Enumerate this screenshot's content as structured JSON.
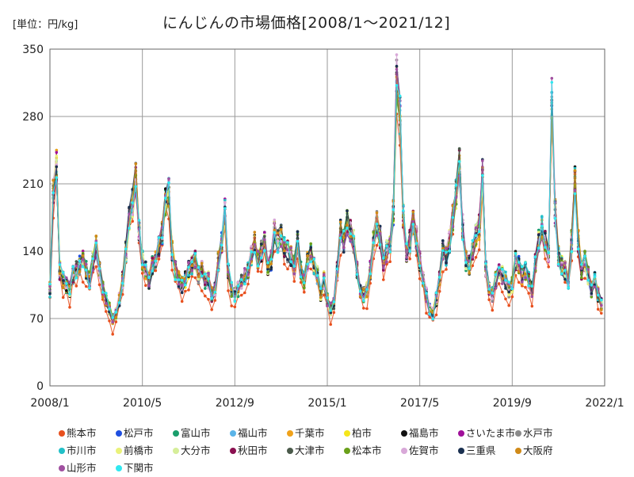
{
  "chart_data": {
    "type": "line",
    "title": "にんじんの市場価格[2008/1～2021/12]",
    "unit_label": "[単位：円/kg]",
    "ylim": [
      0,
      350
    ],
    "yticks": [
      0,
      70,
      140,
      210,
      280,
      350
    ],
    "xlim": [
      "2008/1",
      "2022/1"
    ],
    "xticks": [
      "2008/1",
      "2010/5",
      "2012/9",
      "2015/1",
      "2017/5",
      "2019/9",
      "2022/1"
    ],
    "grid": true,
    "legend_position": "bottom",
    "series": [
      {
        "name": "熊本市",
        "color": "#e8501e"
      },
      {
        "name": "松戸市",
        "color": "#1f4fe0"
      },
      {
        "name": "富山市",
        "color": "#1a9e6c"
      },
      {
        "name": "福山市",
        "color": "#5ab4e8"
      },
      {
        "name": "千葉市",
        "color": "#f0a21a"
      },
      {
        "name": "柏市",
        "color": "#f5e61a"
      },
      {
        "name": "福島市",
        "color": "#111111"
      },
      {
        "name": "さいたま市",
        "color": "#a0109a"
      },
      {
        "name": "水戸市",
        "color": "#8a8a8a"
      },
      {
        "name": "市川市",
        "color": "#22c0c8"
      },
      {
        "name": "前橋市",
        "color": "#eaf27a"
      },
      {
        "name": "大分市",
        "color": "#d6ee9a"
      },
      {
        "name": "秋田市",
        "color": "#8a1050"
      },
      {
        "name": "大津市",
        "color": "#4a5a4a"
      },
      {
        "name": "松本市",
        "color": "#6aa01a"
      },
      {
        "name": "佐賀市",
        "color": "#d8a8d8"
      },
      {
        "name": "三重県",
        "color": "#1a3050"
      },
      {
        "name": "大阪府",
        "color": "#d08a18"
      },
      {
        "name": "山形市",
        "color": "#a050a0"
      },
      {
        "name": "下関市",
        "color": "#30e8f0"
      }
    ],
    "yearly_profile": {
      "years": [
        2008,
        2009,
        2010,
        2011,
        2012,
        2013,
        2014,
        2015,
        2016,
        2017,
        2018,
        2019,
        2020,
        2021
      ],
      "monthly_values": [
        [
          100,
          200,
          230,
          120,
          110,
          105,
          100,
          115,
          120,
          125,
          130,
          120
        ],
        [
          110,
          130,
          145,
          120,
          100,
          90,
          80,
          70,
          75,
          90,
          110,
          140
        ],
        [
          175,
          190,
          215,
          160,
          130,
          120,
          110,
          125,
          130,
          145,
          160,
          190
        ],
        [
          200,
          140,
          120,
          110,
          105,
          110,
          120,
          125,
          130,
          115,
          120,
          110
        ],
        [
          110,
          95,
          100,
          130,
          150,
          180,
          120,
          100,
          95,
          100,
          110,
          115
        ],
        [
          120,
          135,
          150,
          130,
          140,
          150,
          125,
          130,
          160,
          150,
          155,
          145
        ],
        [
          140,
          135,
          125,
          150,
          120,
          110,
          130,
          140,
          125,
          115,
          95,
          110
        ],
        [
          90,
          80,
          85,
          120,
          160,
          150,
          170,
          160,
          150,
          120,
          100,
          95
        ],
        [
          100,
          120,
          150,
          170,
          155,
          130,
          140,
          145,
          180,
          320,
          280,
          175
        ],
        [
          140,
          150,
          170,
          155,
          130,
          110,
          95,
          80,
          75,
          90,
          110,
          140
        ],
        [
          135,
          150,
          175,
          200,
          230,
          165,
          130,
          125,
          140,
          155,
          165,
          220
        ],
        [
          120,
          100,
          95,
          110,
          120,
          115,
          110,
          100,
          105,
          130,
          125,
          115
        ],
        [
          120,
          110,
          100,
          130,
          150,
          165,
          150,
          140,
          300,
          180,
          135,
          125
        ],
        [
          120,
          110,
          150,
          215,
          150,
          120,
          130,
          115,
          100,
          110,
          95,
          85
        ]
      ]
    }
  }
}
